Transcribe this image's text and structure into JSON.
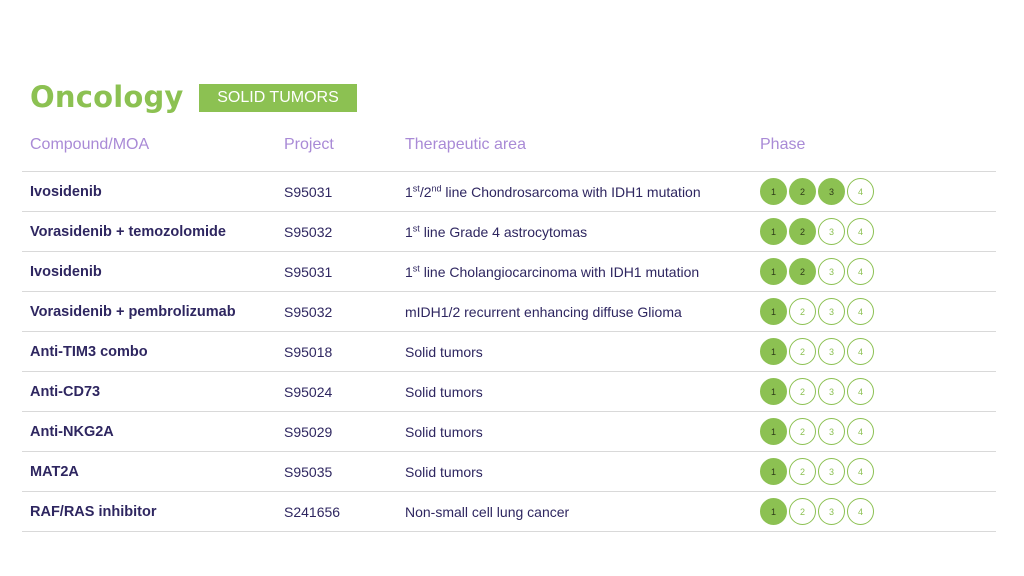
{
  "title": "Oncology",
  "badge": "SOLID TUMORS",
  "headers": {
    "compound": "Compound/MOA",
    "project": "Project",
    "area": "Therapeutic area",
    "phase": "Phase"
  },
  "colors": {
    "accent": "#8cc152",
    "header": "#a98ad6",
    "text": "#2e2660"
  },
  "rows": [
    {
      "compound": "Ivosidenib",
      "project": "S95031",
      "area_parts": [
        [
          "1",
          ""
        ],
        [
          "st",
          "sup"
        ],
        [
          "/2",
          ""
        ],
        [
          "nd",
          "sup"
        ],
        [
          " line Chondrosarcoma with IDH1 mutation",
          ""
        ]
      ],
      "phase": 3
    },
    {
      "compound": "Vorasidenib + temozolomide",
      "project": "S95032",
      "area_parts": [
        [
          "1",
          ""
        ],
        [
          "st",
          "sup"
        ],
        [
          " line Grade 4 astrocytomas",
          ""
        ]
      ],
      "phase": 2
    },
    {
      "compound": "Ivosidenib",
      "project": "S95031",
      "area_parts": [
        [
          "1",
          ""
        ],
        [
          "st",
          "sup"
        ],
        [
          " line Cholangiocarcinoma with IDH1 mutation",
          ""
        ]
      ],
      "phase": 2
    },
    {
      "compound": "Vorasidenib + pembrolizumab",
      "project": "S95032",
      "area_parts": [
        [
          "mIDH1/2 recurrent enhancing diffuse Glioma",
          ""
        ]
      ],
      "phase": 1
    },
    {
      "compound": "Anti-TIM3 combo",
      "project": "S95018",
      "area_parts": [
        [
          "Solid tumors",
          ""
        ]
      ],
      "phase": 1
    },
    {
      "compound": "Anti-CD73",
      "project": "S95024",
      "area_parts": [
        [
          "Solid tumors",
          ""
        ]
      ],
      "phase": 1
    },
    {
      "compound": "Anti-NKG2A",
      "project": "S95029",
      "area_parts": [
        [
          "Solid tumors",
          ""
        ]
      ],
      "phase": 1
    },
    {
      "compound": "MAT2A",
      "project": "S95035",
      "area_parts": [
        [
          "Solid tumors",
          ""
        ]
      ],
      "phase": 1
    },
    {
      "compound": "RAF/RAS inhibitor",
      "project": "S241656",
      "area_parts": [
        [
          "Non-small cell lung cancer",
          ""
        ]
      ],
      "phase": 1
    }
  ],
  "phase_labels": [
    "1",
    "2",
    "3",
    "4"
  ]
}
